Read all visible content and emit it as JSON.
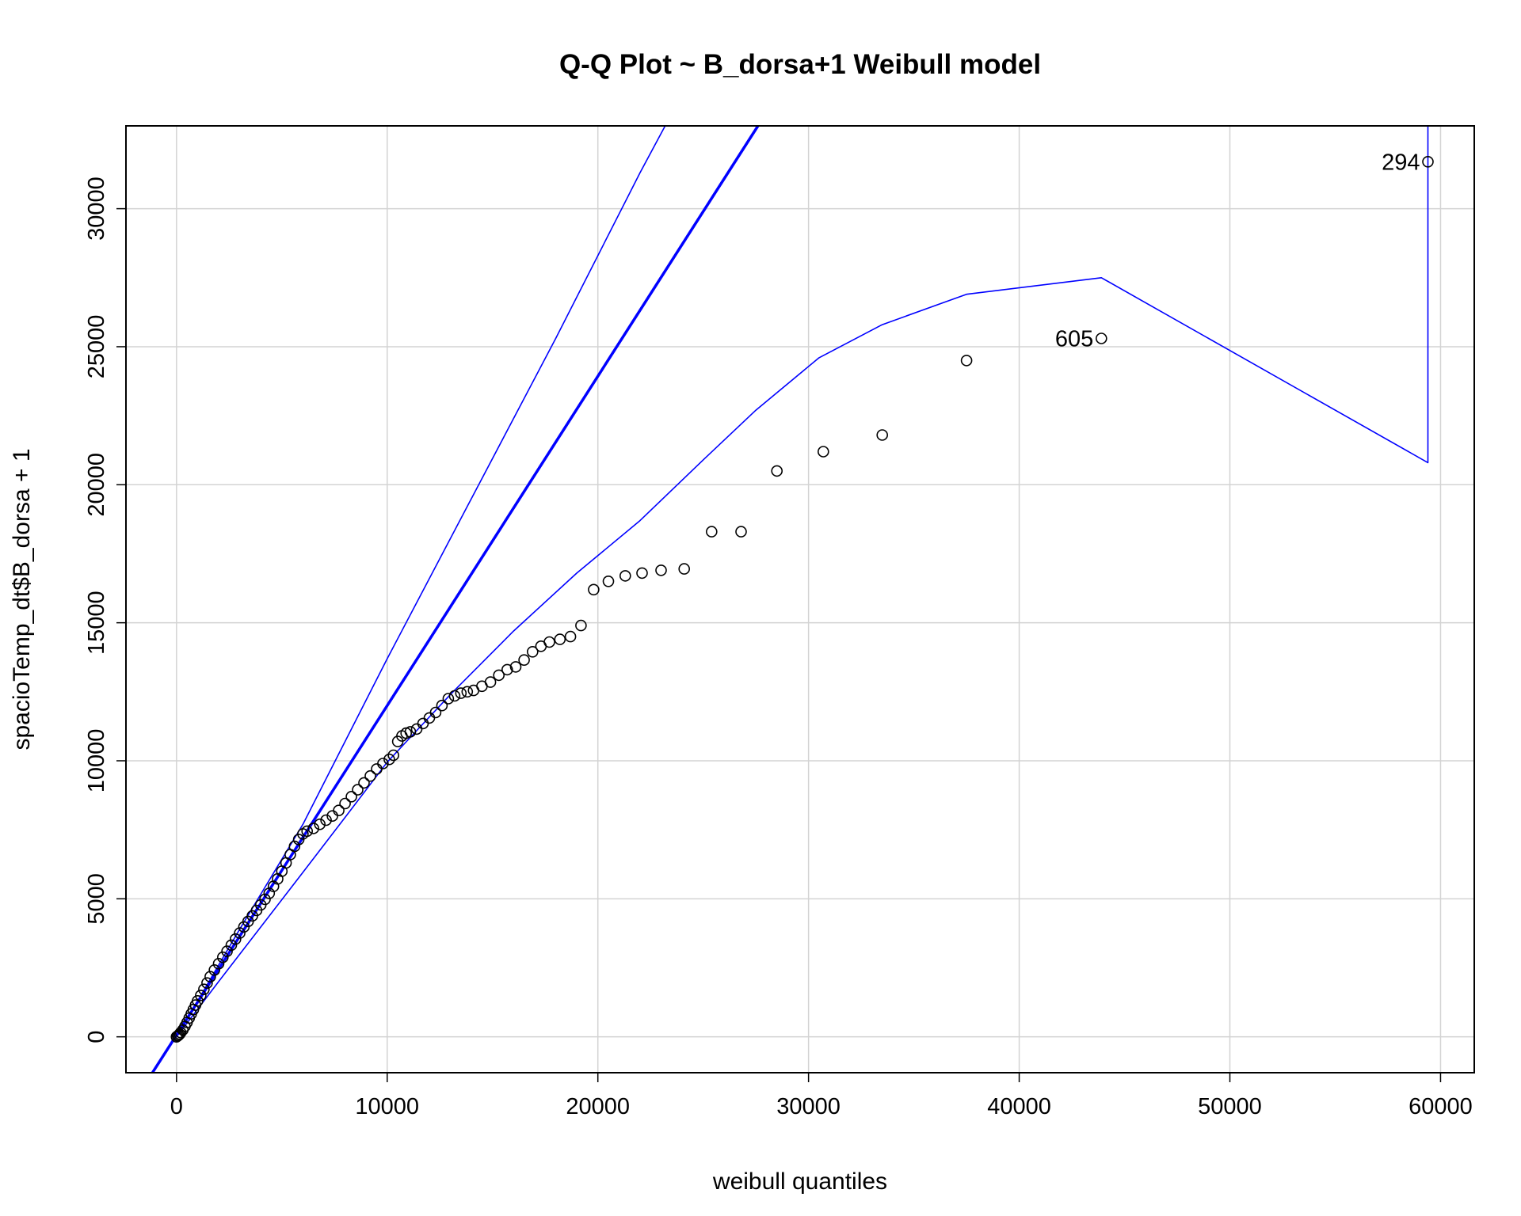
{
  "chart_data": {
    "type": "scatter",
    "title": "Q-Q Plot ~ B_dorsa+1 Weibull model",
    "xlabel": "weibull quantiles",
    "ylabel": "spacioTemp_dt$B_dorsa + 1",
    "xlim": [
      -2400,
      61600
    ],
    "ylim": [
      -1300,
      33000
    ],
    "xticks": [
      0,
      10000,
      20000,
      30000,
      40000,
      50000,
      60000
    ],
    "xtick_labels": [
      "0",
      "10000",
      "20000",
      "30000",
      "40000",
      "50000",
      "60000"
    ],
    "yticks": [
      0,
      5000,
      10000,
      15000,
      20000,
      25000,
      30000
    ],
    "ytick_labels": [
      "0",
      "5000",
      "10000",
      "15000",
      "20000",
      "25000",
      "30000"
    ],
    "grid": true,
    "colors": {
      "points": "#000000",
      "lines": "#0000ff",
      "grid": "#d3d3d3"
    },
    "series": [
      {
        "kind": "points",
        "marker": "open-circle",
        "x": [
          0,
          50,
          100,
          150,
          200,
          300,
          400,
          500,
          600,
          700,
          800,
          900,
          1000,
          1150,
          1300,
          1450,
          1600,
          1800,
          2000,
          2200,
          2400,
          2600,
          2800,
          3000,
          3200,
          3400,
          3600,
          3800,
          4000,
          4200,
          4400,
          4600,
          4800,
          5000,
          5200,
          5400,
          5600,
          5800,
          6000,
          6200,
          6500,
          6800,
          7100,
          7400,
          7700,
          8000,
          8300,
          8600,
          8900,
          9200,
          9500,
          9800,
          10100,
          10300,
          10500,
          10700,
          10900,
          11100,
          11400,
          11700,
          12000,
          12300,
          12600,
          12900,
          13200,
          13500,
          13800,
          14100,
          14500,
          14900,
          15300,
          15700,
          16100,
          16500,
          16900,
          17300,
          17700,
          18200,
          18700,
          19200,
          19800,
          20500,
          21300,
          22100,
          23000,
          24100,
          25400,
          26800,
          28500,
          30700,
          33500,
          37500,
          43900,
          59400
        ],
        "y": [
          0,
          30,
          60,
          100,
          150,
          250,
          380,
          520,
          680,
          830,
          990,
          1150,
          1300,
          1500,
          1720,
          1950,
          2180,
          2420,
          2650,
          2880,
          3100,
          3320,
          3540,
          3760,
          3980,
          4180,
          4380,
          4580,
          4780,
          4980,
          5200,
          5450,
          5720,
          6000,
          6300,
          6600,
          6900,
          7150,
          7350,
          7450,
          7550,
          7700,
          7850,
          8000,
          8200,
          8450,
          8700,
          8950,
          9200,
          9450,
          9700,
          9900,
          10050,
          10200,
          10700,
          10900,
          11000,
          11050,
          11150,
          11350,
          11550,
          11750,
          12000,
          12250,
          12350,
          12450,
          12500,
          12550,
          12700,
          12850,
          13100,
          13300,
          13400,
          13650,
          13950,
          14150,
          14300,
          14400,
          14500,
          14900,
          16200,
          16500,
          16700,
          16800,
          16900,
          16950,
          18300,
          18300,
          20500,
          21200,
          21800,
          24500,
          25300,
          31700
        ]
      },
      {
        "kind": "line",
        "name": "reference",
        "width": "thick",
        "x": [
          -2400,
          27600
        ],
        "y": [
          -2800,
          33000
        ]
      },
      {
        "kind": "line",
        "name": "upper-envelope",
        "width": "thin",
        "x": [
          0,
          3000,
          6000,
          10000,
          14000,
          18000,
          22000,
          26000
        ],
        "y": [
          0,
          3900,
          7700,
          13700,
          19500,
          25300,
          31300,
          37000
        ]
      },
      {
        "kind": "line",
        "name": "lower-envelope",
        "width": "thin",
        "x": [
          0,
          2000,
          4000,
          6000,
          8000,
          10000,
          13000,
          16000,
          19000,
          22000,
          25000,
          27500,
          30500,
          33500,
          37500,
          43900,
          59400,
          59400
        ],
        "y": [
          0,
          2000,
          3980,
          5960,
          7950,
          9950,
          12400,
          14700,
          16800,
          18700,
          20900,
          22700,
          24600,
          25800,
          26900,
          27500,
          20800,
          33000
        ]
      }
    ],
    "annotations": [
      {
        "text": "605",
        "x": 43900,
        "y": 25300
      },
      {
        "text": "294",
        "x": 59400,
        "y": 31700
      }
    ]
  }
}
